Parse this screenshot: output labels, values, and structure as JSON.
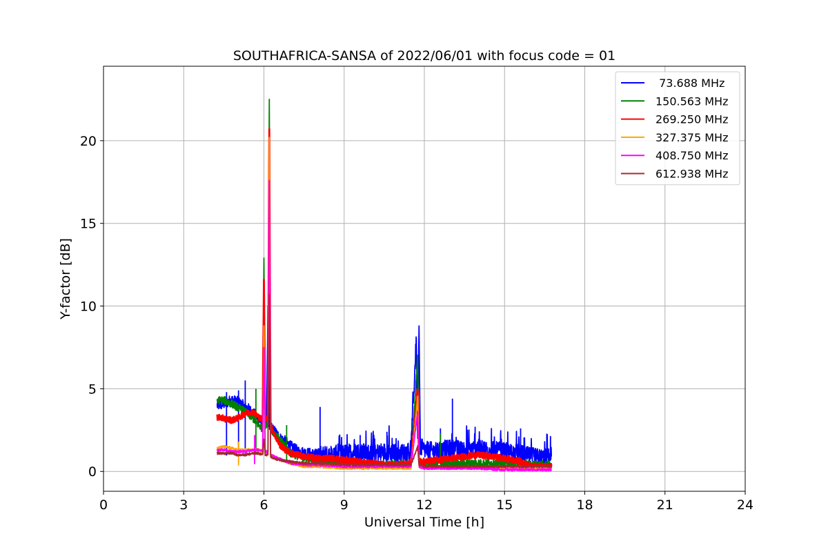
{
  "chart_data": {
    "type": "line",
    "title": "SOUTHAFRICA-SANSA of 2022/06/01 with focus code = 01",
    "xlabel": "Universal Time [h]",
    "ylabel": "Y-factor [dB]",
    "xlim": [
      0,
      24
    ],
    "ylim": [
      -1.2,
      24.5
    ],
    "xticks": [
      0,
      3,
      6,
      9,
      12,
      15,
      18,
      21,
      24
    ],
    "yticks": [
      0,
      5,
      10,
      15,
      20
    ],
    "grid": true,
    "legend_position": "top-right",
    "series": [
      {
        "name": " 73.688 MHz",
        "color": "#0000ff",
        "points": [
          [
            4.25,
            4.0
          ],
          [
            4.5,
            4.1
          ],
          [
            4.8,
            4.3
          ],
          [
            5.0,
            4.2
          ],
          [
            5.2,
            4.0
          ],
          [
            5.4,
            3.8
          ],
          [
            5.6,
            3.5
          ],
          [
            5.8,
            3.2
          ],
          [
            5.95,
            2.9
          ],
          [
            6.0,
            6.6
          ],
          [
            6.05,
            3.0
          ],
          [
            6.1,
            3.1
          ],
          [
            6.15,
            10.0
          ],
          [
            6.2,
            2.8
          ],
          [
            6.4,
            2.4
          ],
          [
            6.6,
            2.0
          ],
          [
            6.8,
            1.8
          ],
          [
            7.0,
            1.5
          ],
          [
            7.3,
            1.2
          ],
          [
            7.6,
            1.1
          ],
          [
            8.0,
            1.0
          ],
          [
            8.5,
            1.0
          ],
          [
            9.0,
            1.1
          ],
          [
            9.5,
            1.2
          ],
          [
            10.0,
            1.1
          ],
          [
            10.5,
            1.2
          ],
          [
            11.0,
            1.1
          ],
          [
            11.5,
            1.2
          ],
          [
            11.7,
            8.0
          ],
          [
            11.75,
            2.0
          ],
          [
            11.8,
            8.8
          ],
          [
            11.85,
            1.5
          ],
          [
            12.0,
            1.3
          ],
          [
            12.5,
            1.2
          ],
          [
            13.0,
            1.4
          ],
          [
            13.5,
            1.3
          ],
          [
            14.0,
            1.4
          ],
          [
            14.5,
            1.3
          ],
          [
            15.0,
            1.2
          ],
          [
            15.5,
            1.1
          ],
          [
            16.0,
            0.9
          ],
          [
            16.5,
            0.8
          ],
          [
            16.75,
            0.9
          ]
        ],
        "spikes": [
          [
            4.6,
            4.8
          ],
          [
            5.05,
            4.9
          ],
          [
            5.3,
            5.5
          ],
          [
            8.1,
            3.9
          ],
          [
            9.6,
            2.2
          ],
          [
            10.6,
            2.4
          ],
          [
            12.6,
            2.6
          ],
          [
            13.05,
            4.4
          ],
          [
            13.9,
            2.7
          ],
          [
            15.6,
            2.6
          ]
        ]
      },
      {
        "name": "150.563 MHz",
        "color": "#008000",
        "points": [
          [
            4.25,
            4.3
          ],
          [
            4.5,
            4.3
          ],
          [
            4.8,
            4.1
          ],
          [
            5.0,
            3.9
          ],
          [
            5.3,
            3.6
          ],
          [
            5.6,
            3.2
          ],
          [
            5.8,
            2.8
          ],
          [
            5.95,
            2.6
          ],
          [
            6.0,
            12.9
          ],
          [
            6.05,
            2.8
          ],
          [
            6.15,
            3.0
          ],
          [
            6.2,
            22.5
          ],
          [
            6.25,
            2.6
          ],
          [
            6.4,
            2.3
          ],
          [
            6.6,
            1.9
          ],
          [
            6.8,
            1.5
          ],
          [
            7.0,
            1.1
          ],
          [
            7.5,
            0.8
          ],
          [
            8.0,
            0.7
          ],
          [
            9.0,
            0.6
          ],
          [
            10.0,
            0.4
          ],
          [
            11.0,
            0.4
          ],
          [
            11.5,
            0.4
          ],
          [
            11.75,
            7.0
          ],
          [
            11.8,
            0.6
          ],
          [
            12.0,
            0.5
          ],
          [
            13.0,
            0.5
          ],
          [
            14.0,
            0.5
          ],
          [
            15.0,
            0.5
          ],
          [
            16.0,
            0.4
          ],
          [
            16.75,
            0.4
          ]
        ],
        "spikes": [
          [
            5.7,
            5.0
          ],
          [
            6.85,
            2.8
          ],
          [
            12.6,
            2.3
          ]
        ]
      },
      {
        "name": "269.250 MHz",
        "color": "#ff0000",
        "points": [
          [
            4.25,
            3.3
          ],
          [
            4.5,
            3.2
          ],
          [
            4.8,
            3.1
          ],
          [
            5.0,
            3.2
          ],
          [
            5.3,
            3.5
          ],
          [
            5.6,
            3.6
          ],
          [
            5.8,
            3.3
          ],
          [
            5.95,
            3.1
          ],
          [
            6.0,
            11.6
          ],
          [
            6.05,
            3.2
          ],
          [
            6.15,
            3.2
          ],
          [
            6.2,
            20.7
          ],
          [
            6.25,
            2.8
          ],
          [
            6.4,
            2.2
          ],
          [
            6.6,
            1.6
          ],
          [
            6.8,
            1.3
          ],
          [
            7.0,
            1.1
          ],
          [
            7.5,
            0.9
          ],
          [
            8.0,
            0.8
          ],
          [
            8.5,
            0.8
          ],
          [
            9.0,
            0.7
          ],
          [
            9.5,
            0.6
          ],
          [
            10.0,
            0.5
          ],
          [
            10.5,
            0.4
          ],
          [
            11.0,
            0.4
          ],
          [
            11.5,
            0.5
          ],
          [
            11.75,
            5.0
          ],
          [
            11.8,
            0.6
          ],
          [
            12.0,
            0.6
          ],
          [
            12.5,
            0.7
          ],
          [
            13.0,
            0.8
          ],
          [
            13.5,
            0.9
          ],
          [
            14.0,
            1.0
          ],
          [
            14.5,
            0.9
          ],
          [
            15.0,
            0.8
          ],
          [
            15.6,
            0.6
          ],
          [
            16.0,
            0.3
          ],
          [
            16.75,
            0.3
          ]
        ],
        "spikes": []
      },
      {
        "name": "327.375 MHz",
        "color": "#ffa500",
        "points": [
          [
            4.25,
            1.4
          ],
          [
            4.5,
            1.5
          ],
          [
            4.8,
            1.4
          ],
          [
            5.0,
            1.3
          ],
          [
            5.3,
            1.3
          ],
          [
            5.6,
            1.3
          ],
          [
            5.8,
            1.3
          ],
          [
            5.95,
            1.2
          ],
          [
            6.0,
            8.8
          ],
          [
            6.05,
            1.2
          ],
          [
            6.15,
            1.2
          ],
          [
            6.2,
            20.2
          ],
          [
            6.25,
            1.0
          ],
          [
            6.5,
            0.8
          ],
          [
            7.0,
            0.5
          ],
          [
            7.5,
            0.3
          ],
          [
            8.0,
            0.3
          ],
          [
            9.0,
            0.2
          ],
          [
            10.0,
            0.2
          ],
          [
            11.0,
            0.2
          ],
          [
            11.5,
            0.2
          ],
          [
            11.75,
            4.5
          ],
          [
            11.8,
            0.3
          ],
          [
            12.0,
            0.2
          ],
          [
            13.0,
            0.2
          ],
          [
            14.0,
            0.2
          ],
          [
            15.0,
            0.2
          ],
          [
            16.0,
            0.2
          ],
          [
            16.75,
            0.2
          ]
        ],
        "spikes": [
          [
            5.05,
            1.8
          ]
        ]
      },
      {
        "name": "408.750 MHz",
        "color": "#ff00ff",
        "points": [
          [
            4.25,
            1.3
          ],
          [
            4.5,
            1.3
          ],
          [
            4.8,
            1.2
          ],
          [
            5.0,
            1.2
          ],
          [
            5.3,
            1.2
          ],
          [
            5.6,
            1.3
          ],
          [
            5.8,
            1.3
          ],
          [
            5.95,
            1.2
          ],
          [
            6.0,
            7.5
          ],
          [
            6.05,
            1.2
          ],
          [
            6.15,
            1.2
          ],
          [
            6.2,
            17.6
          ],
          [
            6.25,
            1.0
          ],
          [
            6.5,
            0.8
          ],
          [
            7.0,
            0.5
          ],
          [
            7.5,
            0.4
          ],
          [
            8.0,
            0.4
          ],
          [
            9.0,
            0.3
          ],
          [
            10.0,
            0.3
          ],
          [
            11.0,
            0.3
          ],
          [
            11.5,
            0.3
          ],
          [
            11.75,
            3.6
          ],
          [
            11.8,
            0.3
          ],
          [
            12.0,
            0.2
          ],
          [
            13.0,
            0.2
          ],
          [
            14.0,
            0.2
          ],
          [
            15.0,
            0.1
          ],
          [
            16.0,
            0.1
          ],
          [
            16.75,
            0.1
          ]
        ],
        "spikes": [
          [
            5.65,
            2.2
          ]
        ]
      },
      {
        "name": "612.938 MHz",
        "color": "#a52a2a",
        "points": [
          [
            4.25,
            1.1
          ],
          [
            4.5,
            1.1
          ],
          [
            4.8,
            1.1
          ],
          [
            5.0,
            1.0
          ],
          [
            5.3,
            1.0
          ],
          [
            5.6,
            1.1
          ],
          [
            5.8,
            1.1
          ],
          [
            5.95,
            1.0
          ],
          [
            6.0,
            2.0
          ],
          [
            6.05,
            1.0
          ],
          [
            6.15,
            1.0
          ],
          [
            6.2,
            10.7
          ],
          [
            6.25,
            0.9
          ],
          [
            6.5,
            0.7
          ],
          [
            7.0,
            0.6
          ],
          [
            7.5,
            0.5
          ],
          [
            8.0,
            0.5
          ],
          [
            9.0,
            0.4
          ],
          [
            10.0,
            0.4
          ],
          [
            11.0,
            0.4
          ],
          [
            11.5,
            0.4
          ],
          [
            11.75,
            1.5
          ],
          [
            11.8,
            0.4
          ],
          [
            12.0,
            0.3
          ],
          [
            13.0,
            0.3
          ],
          [
            14.0,
            0.3
          ],
          [
            15.0,
            0.3
          ],
          [
            16.0,
            0.3
          ],
          [
            16.75,
            0.3
          ]
        ],
        "spikes": []
      }
    ]
  }
}
